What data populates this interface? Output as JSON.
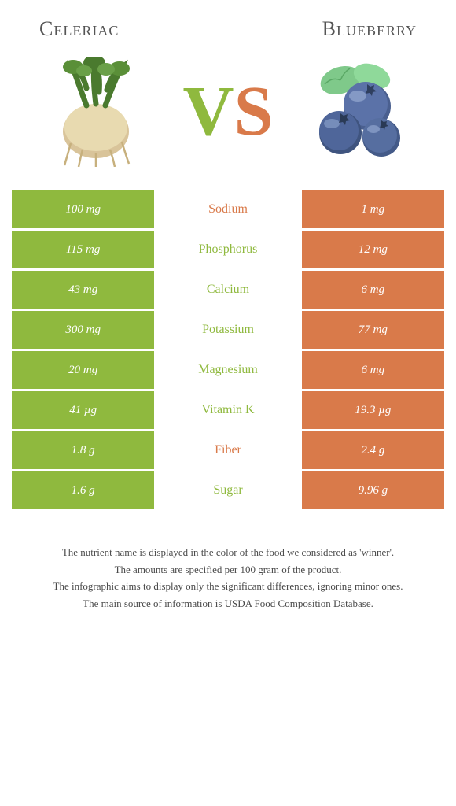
{
  "header": {
    "left_title": "Celeriac",
    "right_title": "Blueberry"
  },
  "vs": {
    "v": "V",
    "s": "S"
  },
  "colors": {
    "left": "#8fb93e",
    "right": "#d97a4a",
    "text": "#555555"
  },
  "rows": [
    {
      "left": "100 mg",
      "nutrient": "Sodium",
      "winner": "right",
      "right": "1 mg"
    },
    {
      "left": "115 mg",
      "nutrient": "Phosphorus",
      "winner": "left",
      "right": "12 mg"
    },
    {
      "left": "43 mg",
      "nutrient": "Calcium",
      "winner": "left",
      "right": "6 mg"
    },
    {
      "left": "300 mg",
      "nutrient": "Potassium",
      "winner": "left",
      "right": "77 mg"
    },
    {
      "left": "20 mg",
      "nutrient": "Magnesium",
      "winner": "left",
      "right": "6 mg"
    },
    {
      "left": "41 µg",
      "nutrient": "Vitamin K",
      "winner": "left",
      "right": "19.3 µg"
    },
    {
      "left": "1.8 g",
      "nutrient": "Fiber",
      "winner": "right",
      "right": "2.4 g"
    },
    {
      "left": "1.6 g",
      "nutrient": "Sugar",
      "winner": "left",
      "right": "9.96 g"
    }
  ],
  "footnotes": [
    "The nutrient name is displayed in the color of the food we considered as 'winner'.",
    "The amounts are specified per 100 gram of the product.",
    "The infographic aims to display only the significant differences, ignoring minor ones.",
    "The main source of information is USDA Food Composition Database."
  ]
}
